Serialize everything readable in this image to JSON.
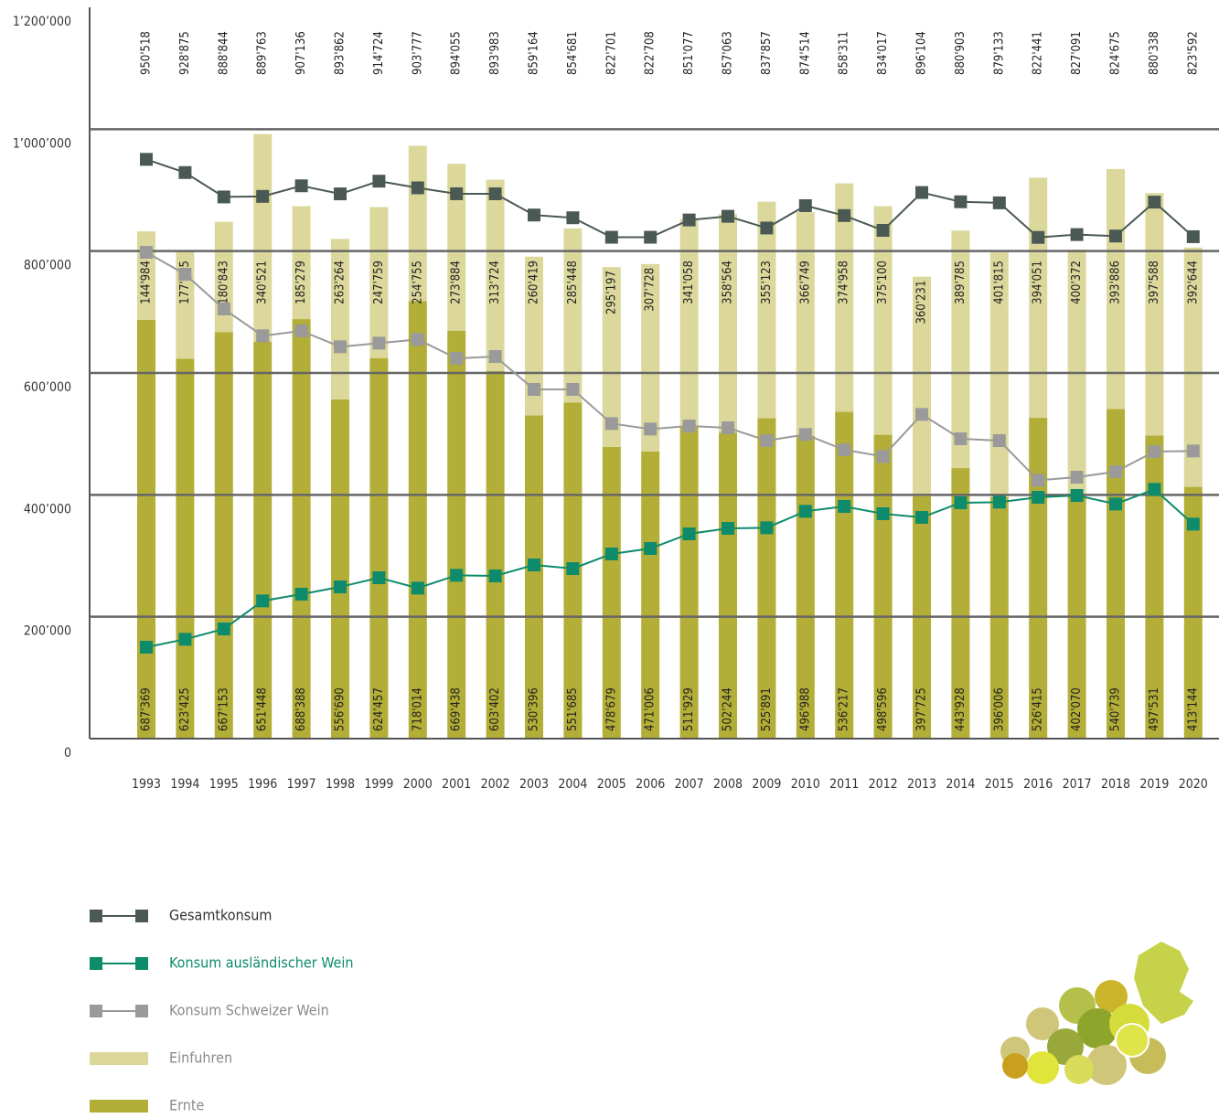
{
  "chart_data": {
    "type": "bar",
    "stacked": true,
    "categories": [
      "1993",
      "1994",
      "1995",
      "1996",
      "1997",
      "1998",
      "1999",
      "2000",
      "2001",
      "2002",
      "2003",
      "2004",
      "2005",
      "2006",
      "2007",
      "2008",
      "2009",
      "2010",
      "2011",
      "2012",
      "2013",
      "2014",
      "2015",
      "2016",
      "2017",
      "2018",
      "2019",
      "2020"
    ],
    "ylim": [
      0,
      1200000
    ],
    "yticks": [
      0,
      {
        "value": 200000,
        "label": "200’000"
      },
      {
        "value": 400000,
        "label": "400’000"
      },
      {
        "value": 600000,
        "label": "600’000"
      },
      {
        "value": 800000,
        "label": "800’000"
      },
      {
        "value": 1000000,
        "label": "1’000’000"
      },
      {
        "value": 1200000,
        "label": "1’200’000"
      }
    ],
    "grid": true,
    "series": [
      {
        "name": "Gesamtkonsum",
        "type": "line",
        "color": "#4b5954",
        "text_color": "#333333",
        "values": [
          950518,
          928875,
          888844,
          889763,
          907136,
          893862,
          914724,
          903777,
          894055,
          893983,
          859164,
          854681,
          822701,
          822708,
          851077,
          857063,
          837857,
          874514,
          858311,
          834017,
          896104,
          880903,
          879133,
          822441,
          827091,
          824675,
          880338,
          823592
        ],
        "value_labels": [
          "950'518",
          "928'875",
          "888'844",
          "889'763",
          "907'136",
          "893'862",
          "914'724",
          "903'777",
          "894'055",
          "893'983",
          "859'164",
          "854'681",
          "822'701",
          "822'708",
          "851'077",
          "857'063",
          "837'857",
          "874'514",
          "858'311",
          "834'017",
          "896'104",
          "880'903",
          "879'133",
          "822'441",
          "827'091",
          "824'675",
          "880'338",
          "823'592"
        ]
      },
      {
        "name": "Konsum ausländischer Wein",
        "type": "line",
        "color": "#0e8b6b",
        "text_color": "#0e8b6b",
        "values": [
          150000,
          163000,
          180000,
          226000,
          237000,
          249000,
          264000,
          247000,
          268000,
          267000,
          285000,
          279000,
          303000,
          312000,
          336000,
          345000,
          346000,
          373000,
          381000,
          369000,
          363000,
          387000,
          388000,
          396000,
          399000,
          385000,
          409000,
          352000
        ]
      },
      {
        "name": "Konsum Schweizer Wein",
        "type": "line",
        "color": "#9a9a9a",
        "text_color": "#8a8a8a",
        "values": [
          798000,
          762000,
          705000,
          661000,
          669000,
          643000,
          649000,
          655000,
          624000,
          627000,
          573000,
          573000,
          517000,
          508000,
          513000,
          510000,
          489000,
          499000,
          474000,
          463000,
          532000,
          492000,
          489000,
          424000,
          429000,
          438000,
          471000,
          472000
        ]
      },
      {
        "name": "Einfuhren",
        "type": "bar",
        "color": "#dcd89c",
        "text_color": "#8a8a8a",
        "values": [
          144984,
          177815,
          180843,
          340521,
          185279,
          263264,
          247759,
          254755,
          273884,
          313724,
          260419,
          285448,
          295197,
          307728,
          341058,
          358564,
          355123,
          366749,
          374958,
          375100,
          360231,
          389785,
          401815,
          394051,
          400372,
          393886,
          397588,
          392644
        ],
        "value_labels": [
          "144'984",
          "177'815",
          "180'843",
          "340'521",
          "185'279",
          "263'264",
          "247'759",
          "254'755",
          "273'884",
          "313'724",
          "260'419",
          "285'448",
          "295'197",
          "307'728",
          "341'058",
          "358'564",
          "355'123",
          "366'749",
          "374'958",
          "375'100",
          "360'231",
          "389'785",
          "401'815",
          "394'051",
          "400'372",
          "393'886",
          "397'588",
          "392'644"
        ]
      },
      {
        "name": "Ernte",
        "type": "bar",
        "color": "#b3ae37",
        "text_color": "#8a8a8a",
        "values": [
          687369,
          623425,
          667153,
          651448,
          688388,
          556690,
          624457,
          718014,
          669438,
          603402,
          530396,
          551685,
          478679,
          471006,
          511929,
          502244,
          525891,
          496988,
          536217,
          498596,
          397725,
          443928,
          396006,
          526415,
          402070,
          540739,
          497531,
          413144
        ],
        "value_labels": [
          "687'369",
          "623'425",
          "667'153",
          "651'448",
          "688'388",
          "556'690",
          "624'457",
          "718'014",
          "669'438",
          "603'402",
          "530'396",
          "551'685",
          "478'679",
          "471'006",
          "511'929",
          "502'244",
          "525'891",
          "496'988",
          "536'217",
          "498'596",
          "397'725",
          "443'928",
          "396'006",
          "526'415",
          "402'070",
          "540'739",
          "497'531",
          "413'144"
        ]
      }
    ]
  }
}
